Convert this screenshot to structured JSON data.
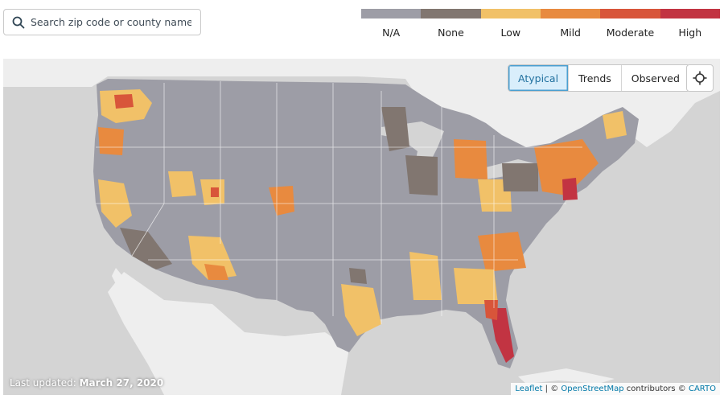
{
  "search": {
    "placeholder": "Search zip code or county name",
    "icon": "search-icon"
  },
  "legend": [
    {
      "label": "N/A",
      "color": "#9d9da6"
    },
    {
      "label": "None",
      "color": "#817670"
    },
    {
      "label": "Low",
      "color": "#f1c168"
    },
    {
      "label": "Mild",
      "color": "#e88a3f"
    },
    {
      "label": "Moderate",
      "color": "#d8553a"
    },
    {
      "label": "High",
      "color": "#c23442"
    }
  ],
  "view_toggle": {
    "options": [
      "Atypical",
      "Trends",
      "Observed"
    ],
    "active": "Atypical"
  },
  "locate_icon": "crosshair-icon",
  "last_updated": {
    "label": "Last updated:",
    "date": "March 27, 2020"
  },
  "attribution": {
    "leaflet": "Leaflet",
    "separator": "| ©",
    "osm": "OpenStreetMap",
    "contributors": "contributors ©",
    "carto": "CARTO"
  },
  "colors": {
    "land": "#eeeeee",
    "sea": "#d4d4d4",
    "na": "#9d9da6"
  }
}
